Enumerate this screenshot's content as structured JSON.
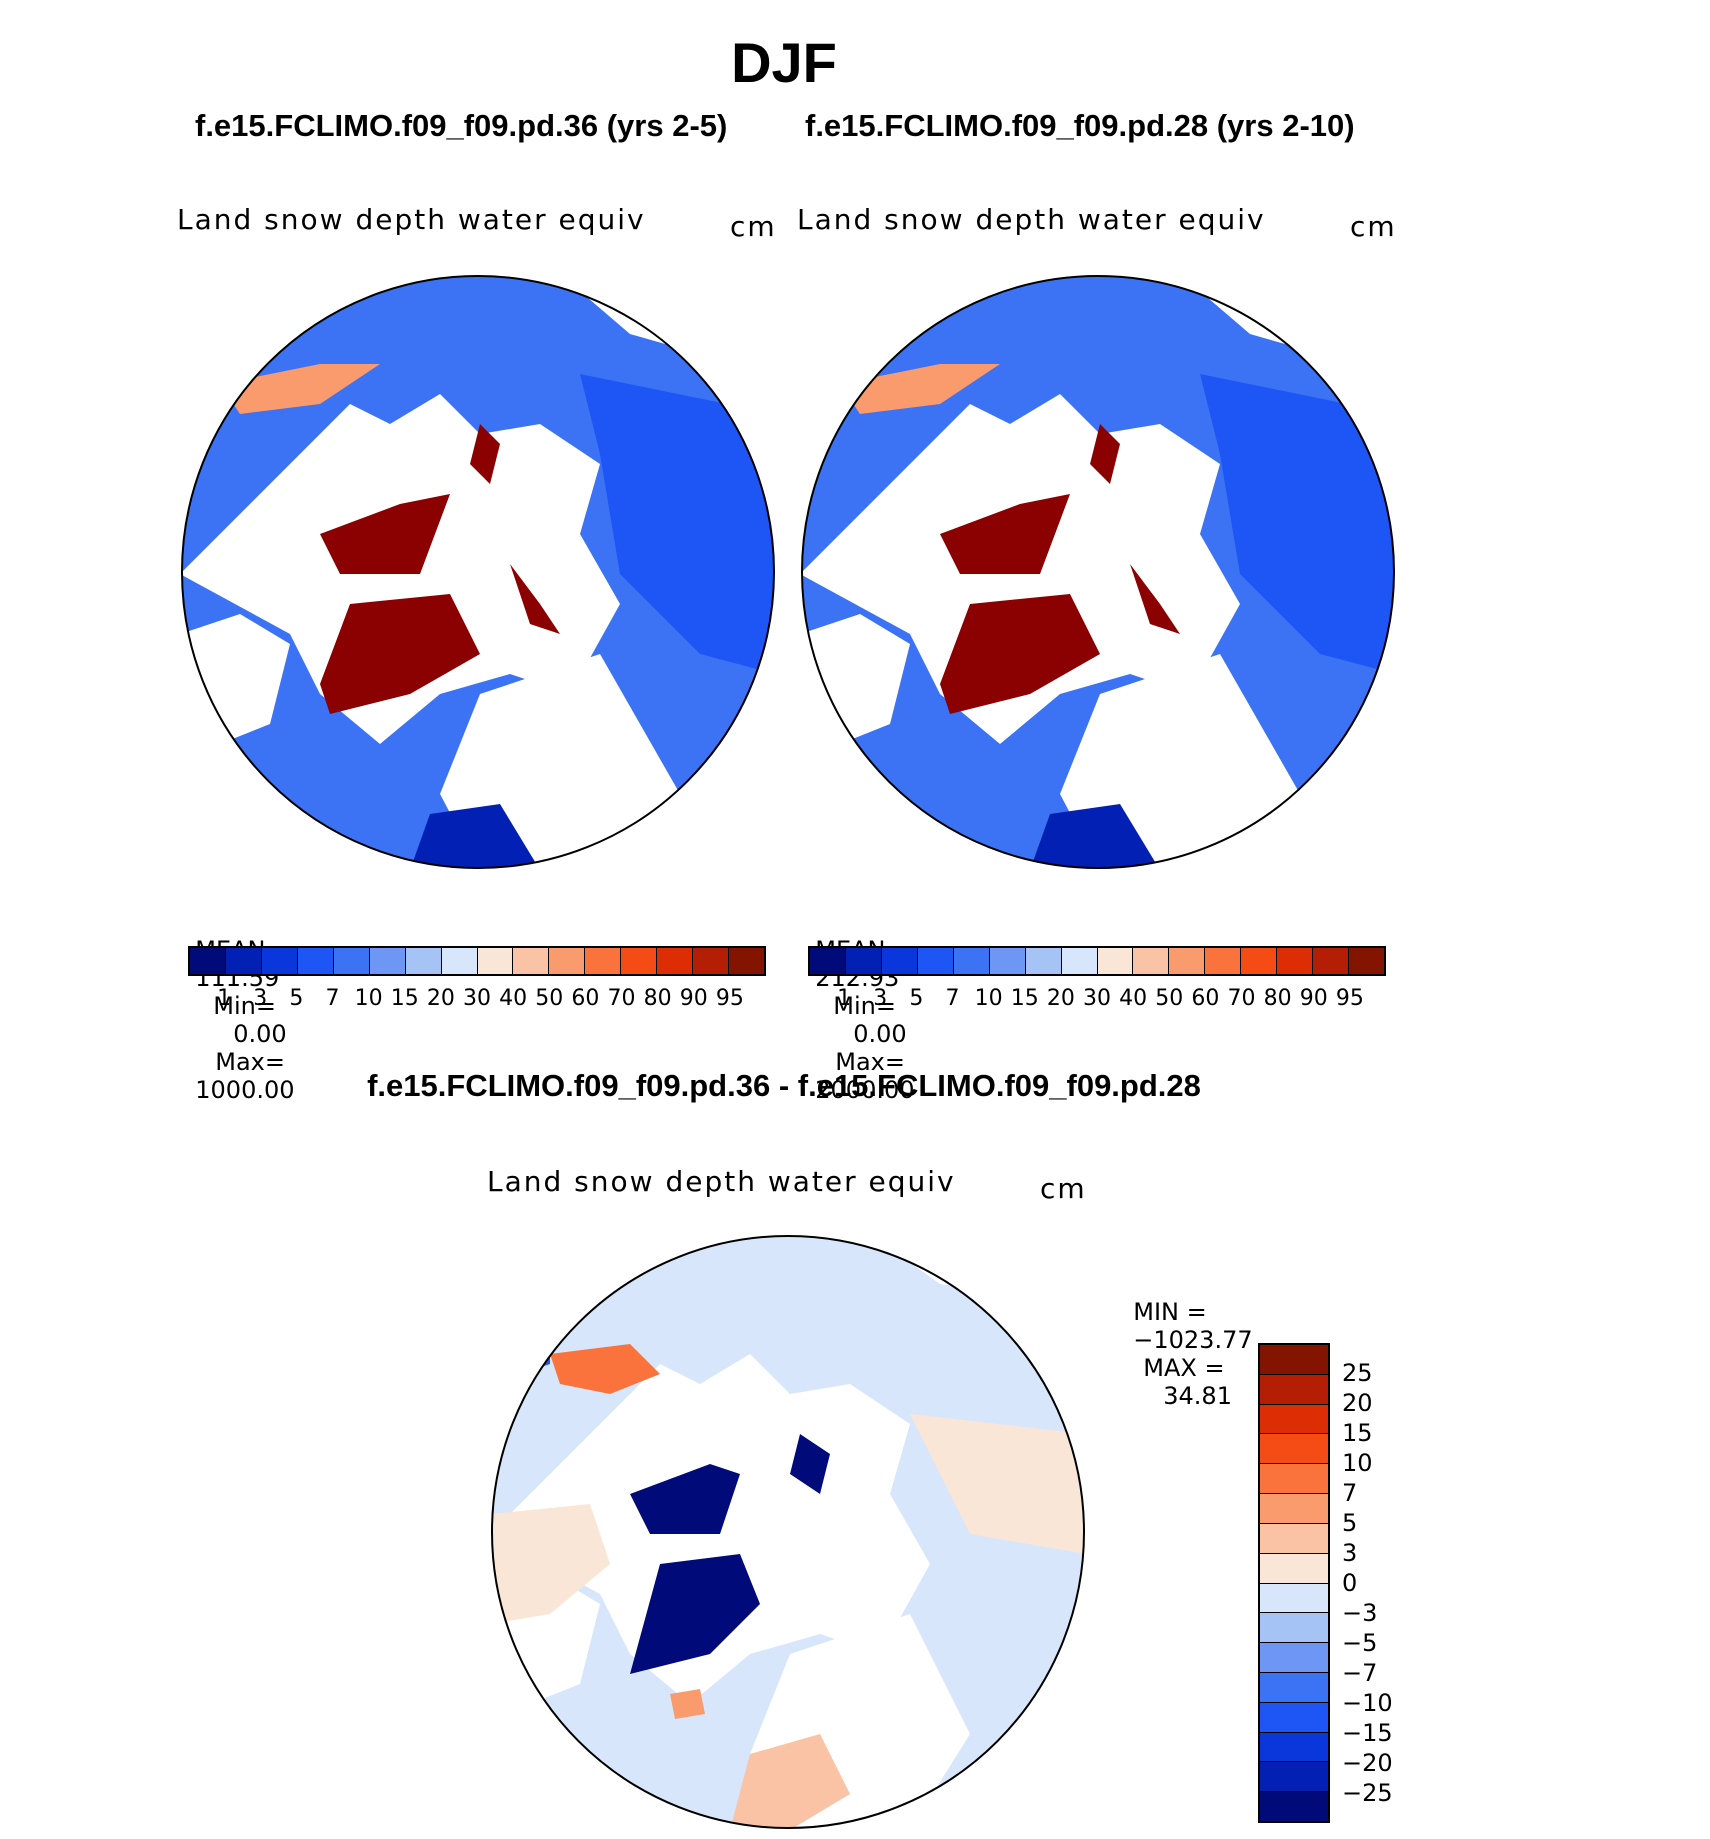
{
  "figure": {
    "season": "DJF",
    "diff_title": "f.e15.FCLIMO.f09_f09.pd.36 - f.e15.FCLIMO.f09_f09.pd.28"
  },
  "panels": [
    {
      "case_title": "f.e15.FCLIMO.f09_f09.pd.36 (yrs 2-5)",
      "variable": "Land snow depth water equiv",
      "units": "cm",
      "mean_label": "MEAN=",
      "mean_value": "111.59",
      "min_label": "Min=",
      "min_value": "0.00",
      "max_label": "Max=",
      "max_value": "1000.00"
    },
    {
      "case_title": "f.e15.FCLIMO.f09_f09.pd.28 (yrs 2-10)",
      "variable": "Land snow depth water equiv",
      "units": "cm",
      "mean_label": "MEAN=",
      "mean_value": "212.93",
      "min_label": "Min=",
      "min_value": "0.00",
      "max_label": "Max=",
      "max_value": "2000.00"
    }
  ],
  "diff_panel": {
    "variable": "Land snow depth water equiv",
    "units": "cm",
    "min_label": "MIN =",
    "min_value": "−1023.77",
    "max_label": "MAX =",
    "max_value": "34.81"
  },
  "abs_colorbar": {
    "colors": [
      "#000a78",
      "#0320b4",
      "#0a37dc",
      "#1e55f5",
      "#3c73f5",
      "#6e96f5",
      "#a5c3f5",
      "#d7e6fa",
      "#fae6d7",
      "#fac3a5",
      "#fa9b6e",
      "#fa733c",
      "#f54b14",
      "#dc2d05",
      "#b41e05",
      "#821400"
    ],
    "labels": [
      "1",
      "3",
      "5",
      "7",
      "10",
      "15",
      "20",
      "30",
      "40",
      "50",
      "60",
      "70",
      "80",
      "90",
      "95"
    ]
  },
  "diff_colorbar": {
    "colors": [
      "#821400",
      "#b41e05",
      "#dc2d05",
      "#f54b14",
      "#fa733c",
      "#fa9b6e",
      "#fac3a5",
      "#fae6d7",
      "#d7e6fa",
      "#a5c3f5",
      "#6e96f5",
      "#3c73f5",
      "#1e55f5",
      "#0a37dc",
      "#0320b4",
      "#000a78"
    ],
    "labels": [
      "25",
      "20",
      "15",
      "10",
      "7",
      "5",
      "3",
      "0",
      "−3",
      "−5",
      "−7",
      "−10",
      "−15",
      "−20",
      "−25"
    ]
  },
  "legend_colors": {
    "greenland_abs": "#8b0000",
    "greenland_diff": "#000a78",
    "ocean": "#ffffff",
    "land_base_abs": "#3c73f5",
    "land_base_diff": "#d7e6fa"
  }
}
